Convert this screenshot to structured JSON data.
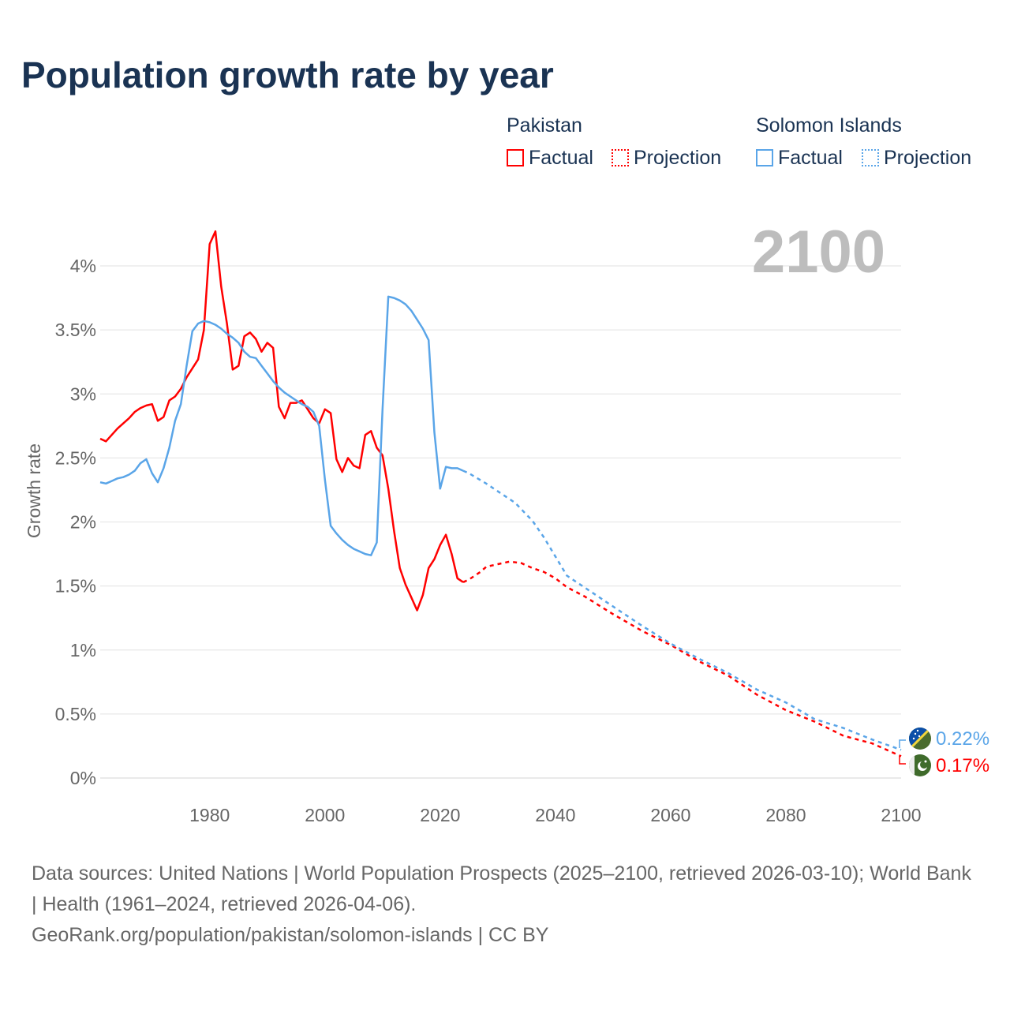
{
  "title": "Population growth rate by year",
  "legend": {
    "groups": [
      {
        "name": "Pakistan",
        "color": "#ff0000",
        "factual": "Factual",
        "projection": "Projection"
      },
      {
        "name": "Solomon Islands",
        "color": "#5aa5e8",
        "factual": "Factual",
        "projection": "Projection"
      }
    ]
  },
  "current_year": "2100",
  "end_labels": {
    "solomon": "0.22%",
    "pakistan": "0.17%"
  },
  "sources": {
    "line1": "Data sources: United Nations | World Population Prospects (2025–2100, retrieved 2026-03-10); World Bank | Health (1961–2024, retrieved 2026-04-06).",
    "line2": "GeoRank.org/population/pakistan/solomon-islands | CC BY"
  },
  "chart_data": {
    "type": "line",
    "title": "Population growth rate by year",
    "xlabel": "",
    "ylabel": "Growth rate",
    "xlim": [
      1961,
      2100
    ],
    "ylim": [
      0,
      4.3
    ],
    "xticks": [
      1980,
      2000,
      2020,
      2040,
      2060,
      2080,
      2100
    ],
    "yticks": [
      0,
      0.5,
      1,
      1.5,
      2,
      2.5,
      3,
      3.5,
      4
    ],
    "ytick_labels": [
      "0%",
      "0.5%",
      "1%",
      "1.5%",
      "2%",
      "2.5%",
      "3%",
      "3.5%",
      "4%"
    ],
    "grid": true,
    "series": [
      {
        "name": "Pakistan Factual",
        "color": "#ff0000",
        "dashed": false,
        "x": [
          1961,
          1962,
          1963,
          1964,
          1965,
          1966,
          1967,
          1968,
          1969,
          1970,
          1971,
          1972,
          1973,
          1974,
          1975,
          1976,
          1977,
          1978,
          1979,
          1980,
          1981,
          1982,
          1983,
          1984,
          1985,
          1986,
          1987,
          1988,
          1989,
          1990,
          1991,
          1992,
          1993,
          1994,
          1995,
          1996,
          1997,
          1998,
          1999,
          2000,
          2001,
          2002,
          2003,
          2004,
          2005,
          2006,
          2007,
          2008,
          2009,
          2010,
          2011,
          2012,
          2013,
          2014,
          2015,
          2016,
          2017,
          2018,
          2019,
          2020,
          2021,
          2022,
          2023,
          2024
        ],
        "y": [
          2.65,
          2.63,
          2.68,
          2.73,
          2.77,
          2.81,
          2.86,
          2.89,
          2.91,
          2.92,
          2.79,
          2.82,
          2.95,
          2.98,
          3.04,
          3.13,
          3.2,
          3.27,
          3.5,
          4.17,
          4.27,
          3.84,
          3.55,
          3.19,
          3.22,
          3.45,
          3.48,
          3.43,
          3.33,
          3.4,
          3.36,
          2.9,
          2.81,
          2.93,
          2.93,
          2.95,
          2.88,
          2.81,
          2.77,
          2.88,
          2.85,
          2.49,
          2.39,
          2.5,
          2.44,
          2.42,
          2.68,
          2.71,
          2.58,
          2.52,
          2.26,
          1.93,
          1.64,
          1.51,
          1.41,
          1.31,
          1.43,
          1.64,
          1.71,
          1.82,
          1.9,
          1.75,
          1.56,
          1.53
        ]
      },
      {
        "name": "Pakistan Projection",
        "color": "#ff0000",
        "dashed": true,
        "x": [
          2024,
          2025,
          2026,
          2027,
          2028,
          2030,
          2032,
          2034,
          2036,
          2038,
          2040,
          2042,
          2045,
          2050,
          2055,
          2060,
          2065,
          2070,
          2075,
          2080,
          2085,
          2090,
          2095,
          2100
        ],
        "y": [
          1.53,
          1.55,
          1.58,
          1.61,
          1.65,
          1.67,
          1.69,
          1.68,
          1.64,
          1.61,
          1.56,
          1.49,
          1.42,
          1.28,
          1.15,
          1.04,
          0.91,
          0.8,
          0.65,
          0.53,
          0.44,
          0.33,
          0.27,
          0.17
        ]
      },
      {
        "name": "Solomon Islands Factual",
        "color": "#5aa5e8",
        "dashed": false,
        "x": [
          1961,
          1962,
          1963,
          1964,
          1965,
          1966,
          1967,
          1968,
          1969,
          1970,
          1971,
          1972,
          1973,
          1974,
          1975,
          1976,
          1977,
          1978,
          1979,
          1980,
          1981,
          1982,
          1983,
          1984,
          1985,
          1986,
          1987,
          1988,
          1989,
          1990,
          1991,
          1992,
          1993,
          1994,
          1995,
          1996,
          1997,
          1998,
          1999,
          2000,
          2001,
          2002,
          2003,
          2004,
          2005,
          2006,
          2007,
          2008,
          2009,
          2010,
          2011,
          2012,
          2013,
          2014,
          2015,
          2016,
          2017,
          2018,
          2019,
          2020,
          2021,
          2022,
          2023,
          2024
        ],
        "y": [
          2.31,
          2.3,
          2.32,
          2.34,
          2.35,
          2.37,
          2.4,
          2.46,
          2.49,
          2.38,
          2.31,
          2.42,
          2.58,
          2.79,
          2.92,
          3.22,
          3.49,
          3.55,
          3.57,
          3.56,
          3.54,
          3.51,
          3.47,
          3.44,
          3.4,
          3.33,
          3.29,
          3.28,
          3.22,
          3.16,
          3.1,
          3.05,
          3.01,
          2.98,
          2.95,
          2.92,
          2.9,
          2.86,
          2.75,
          2.33,
          1.97,
          1.91,
          1.86,
          1.82,
          1.79,
          1.77,
          1.75,
          1.74,
          1.84,
          2.88,
          3.76,
          3.75,
          3.73,
          3.7,
          3.65,
          3.58,
          3.51,
          3.42,
          2.7,
          2.26,
          2.43,
          2.42,
          2.42,
          2.4
        ]
      },
      {
        "name": "Solomon Islands Projection",
        "color": "#5aa5e8",
        "dashed": true,
        "x": [
          2024,
          2025,
          2028,
          2030,
          2033,
          2036,
          2038,
          2040,
          2042,
          2045,
          2050,
          2055,
          2060,
          2065,
          2070,
          2075,
          2080,
          2085,
          2090,
          2095,
          2100
        ],
        "y": [
          2.4,
          2.38,
          2.3,
          2.24,
          2.15,
          2.01,
          1.88,
          1.73,
          1.58,
          1.49,
          1.34,
          1.19,
          1.05,
          0.93,
          0.82,
          0.69,
          0.59,
          0.46,
          0.39,
          0.3,
          0.22
        ]
      }
    ]
  }
}
